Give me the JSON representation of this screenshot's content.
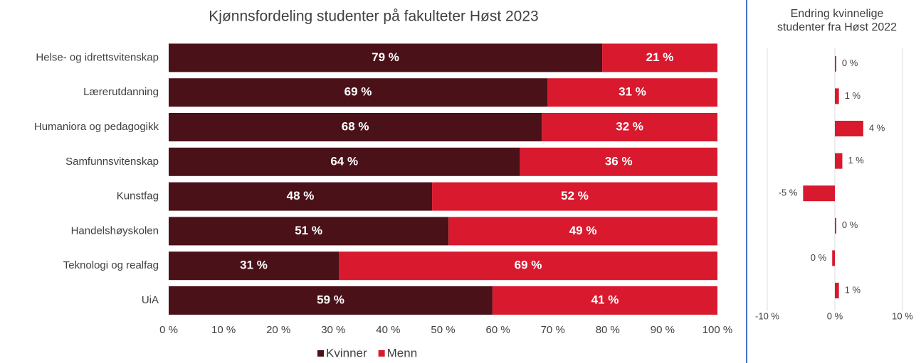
{
  "chart_data": [
    {
      "type": "bar",
      "orientation": "horizontal",
      "stacked": true,
      "title": "Kjønnsfordeling studenter på fakulteter Høst 2023",
      "categories": [
        "Helse- og idrettsvitenskap",
        "Lærerutdanning",
        "Humaniora og pedagogikk",
        "Samfunnsvitenskap",
        "Kunstfag",
        "Handelshøyskolen",
        "Teknologi og realfag",
        "UiA"
      ],
      "series": [
        {
          "name": "Kvinner",
          "color": "#4a1119",
          "values": [
            79,
            69,
            68,
            64,
            48,
            51,
            31,
            59
          ],
          "value_labels": [
            "79 %",
            "69 %",
            "68 %",
            "64 %",
            "48 %",
            "51 %",
            "31 %",
            "59 %"
          ]
        },
        {
          "name": "Menn",
          "color": "#d8192e",
          "values": [
            21,
            31,
            32,
            36,
            52,
            49,
            69,
            41
          ],
          "value_labels": [
            "21 %",
            "31 %",
            "32 %",
            "36 %",
            "52 %",
            "49 %",
            "69 %",
            "41 %"
          ]
        }
      ],
      "xlim": [
        0,
        100
      ],
      "xticks": [
        {
          "value": 0,
          "label": "0 %"
        },
        {
          "value": 10,
          "label": "10 %"
        },
        {
          "value": 20,
          "label": "20 %"
        },
        {
          "value": 30,
          "label": "30 %"
        },
        {
          "value": 40,
          "label": "40 %"
        },
        {
          "value": 50,
          "label": "50 %"
        },
        {
          "value": 60,
          "label": "60 %"
        },
        {
          "value": 70,
          "label": "70 %"
        },
        {
          "value": 80,
          "label": "80 %"
        },
        {
          "value": 90,
          "label": "90 %"
        },
        {
          "value": 100,
          "label": "100 %"
        }
      ],
      "legend": "bottom"
    },
    {
      "type": "bar",
      "orientation": "horizontal",
      "title": "Endring kvinnelige studenter fra Høst 2022",
      "color": "#d8192e",
      "values": [
        0.2,
        0.6,
        4.2,
        1.1,
        -4.7,
        0.2,
        -0.4,
        0.6
      ],
      "value_labels": [
        "0 %",
        "1 %",
        "4 %",
        "1 %",
        "-5 %",
        "0 %",
        "0 %",
        "1 %"
      ],
      "xlim": [
        -10,
        10
      ],
      "xticks": [
        {
          "value": -10,
          "label": "-10 %"
        },
        {
          "value": 0,
          "label": "0 %"
        },
        {
          "value": 10,
          "label": "10 %"
        }
      ],
      "grid": true
    }
  ]
}
